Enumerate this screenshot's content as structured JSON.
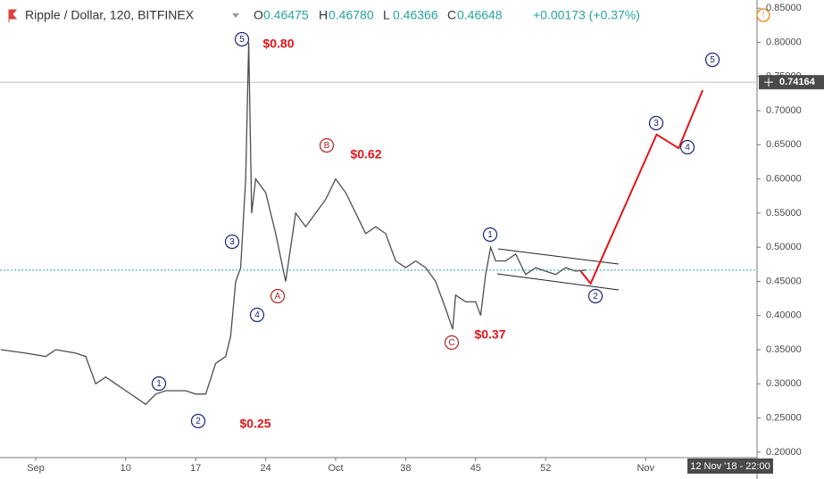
{
  "chart_data": {
    "type": "line",
    "title": "Ripple / Dollar, 120, BITFINEX",
    "ohlc": [
      {
        "label": "O",
        "value": "0.46475"
      },
      {
        "label": "H",
        "value": "0.46780"
      },
      {
        "label": "L",
        "value": "0.46366"
      },
      {
        "label": "C",
        "value": "0.46648"
      }
    ],
    "change": "+0.00173 (+0.37%)",
    "last_price": {
      "value": 0.74164,
      "label": "0.74164"
    },
    "current_close": 0.46648,
    "date_tag": "12 Nov '18 - 22:00",
    "xlim": [
      -2.57,
      73.14
    ],
    "ylim": [
      0.192,
      0.862
    ],
    "xticks": [
      {
        "value": 1,
        "label": "Sep"
      },
      10,
      17,
      24,
      {
        "value": 31,
        "label": "Oct"
      },
      38,
      45,
      52,
      {
        "value": 62,
        "label": "Nov"
      }
    ],
    "yticks": [
      {
        "value": 0.85,
        "label": "0.85000"
      },
      {
        "value": 0.8,
        "label": "0.80000"
      },
      {
        "value": 0.75,
        "label": "0.75000"
      },
      {
        "value": 0.7,
        "label": "0.70000"
      },
      {
        "value": 0.65,
        "label": "0.65000"
      },
      {
        "value": 0.6,
        "label": "0.60000"
      },
      {
        "value": 0.55,
        "label": "0.55000"
      },
      {
        "value": 0.5,
        "label": "0.50000"
      },
      {
        "value": 0.45,
        "label": "0.45000"
      },
      {
        "value": 0.4,
        "label": "0.40000"
      },
      {
        "value": 0.35,
        "label": "0.35000"
      },
      {
        "value": 0.3,
        "label": "0.30000"
      },
      {
        "value": 0.25,
        "label": "0.25000"
      },
      {
        "value": 0.2,
        "label": "0.20000"
      }
    ],
    "series": [
      {
        "color": "#4d4d4d",
        "x": [
          -2.5,
          0,
          2,
          3,
          5,
          6,
          7,
          8,
          9,
          10,
          11,
          12,
          13,
          14,
          15,
          16,
          17,
          18,
          19,
          20,
          20.5,
          21,
          21.5,
          22,
          22.3,
          22.6,
          23,
          24,
          25,
          26,
          27,
          28,
          29,
          30,
          31,
          32,
          33,
          34,
          35,
          36,
          37,
          38,
          39,
          40,
          41,
          42,
          42.7,
          43,
          44,
          45,
          45.5,
          46,
          46.5,
          47,
          48,
          49,
          50,
          51,
          52,
          53,
          54,
          55,
          56
        ],
        "values": [
          0.35,
          0.345,
          0.34,
          0.35,
          0.345,
          0.34,
          0.3,
          0.31,
          0.3,
          0.29,
          0.28,
          0.27,
          0.285,
          0.29,
          0.29,
          0.29,
          0.285,
          0.285,
          0.33,
          0.34,
          0.37,
          0.45,
          0.47,
          0.6,
          0.8,
          0.55,
          0.6,
          0.58,
          0.52,
          0.45,
          0.55,
          0.53,
          0.55,
          0.57,
          0.6,
          0.58,
          0.55,
          0.52,
          0.53,
          0.52,
          0.48,
          0.47,
          0.48,
          0.47,
          0.45,
          0.41,
          0.38,
          0.43,
          0.42,
          0.42,
          0.4,
          0.46,
          0.5,
          0.48,
          0.48,
          0.49,
          0.46,
          0.47,
          0.465,
          0.46,
          0.47,
          0.465,
          0.46648
        ]
      },
      {
        "color": "#e0161b",
        "x": [
          55.5,
          56.5,
          63.1,
          65.3,
          67.7
        ],
        "values": [
          0.465,
          0.447,
          0.665,
          0.645,
          0.73
        ]
      }
    ],
    "waves": [
      "5",
      "3",
      "4",
      "A",
      "B",
      "C",
      "1",
      "2",
      "1",
      "2",
      "3",
      "4",
      "5"
    ],
    "price_labels": [
      "$0.80",
      "$0.62",
      "$0.37",
      "$0.25"
    ]
  }
}
